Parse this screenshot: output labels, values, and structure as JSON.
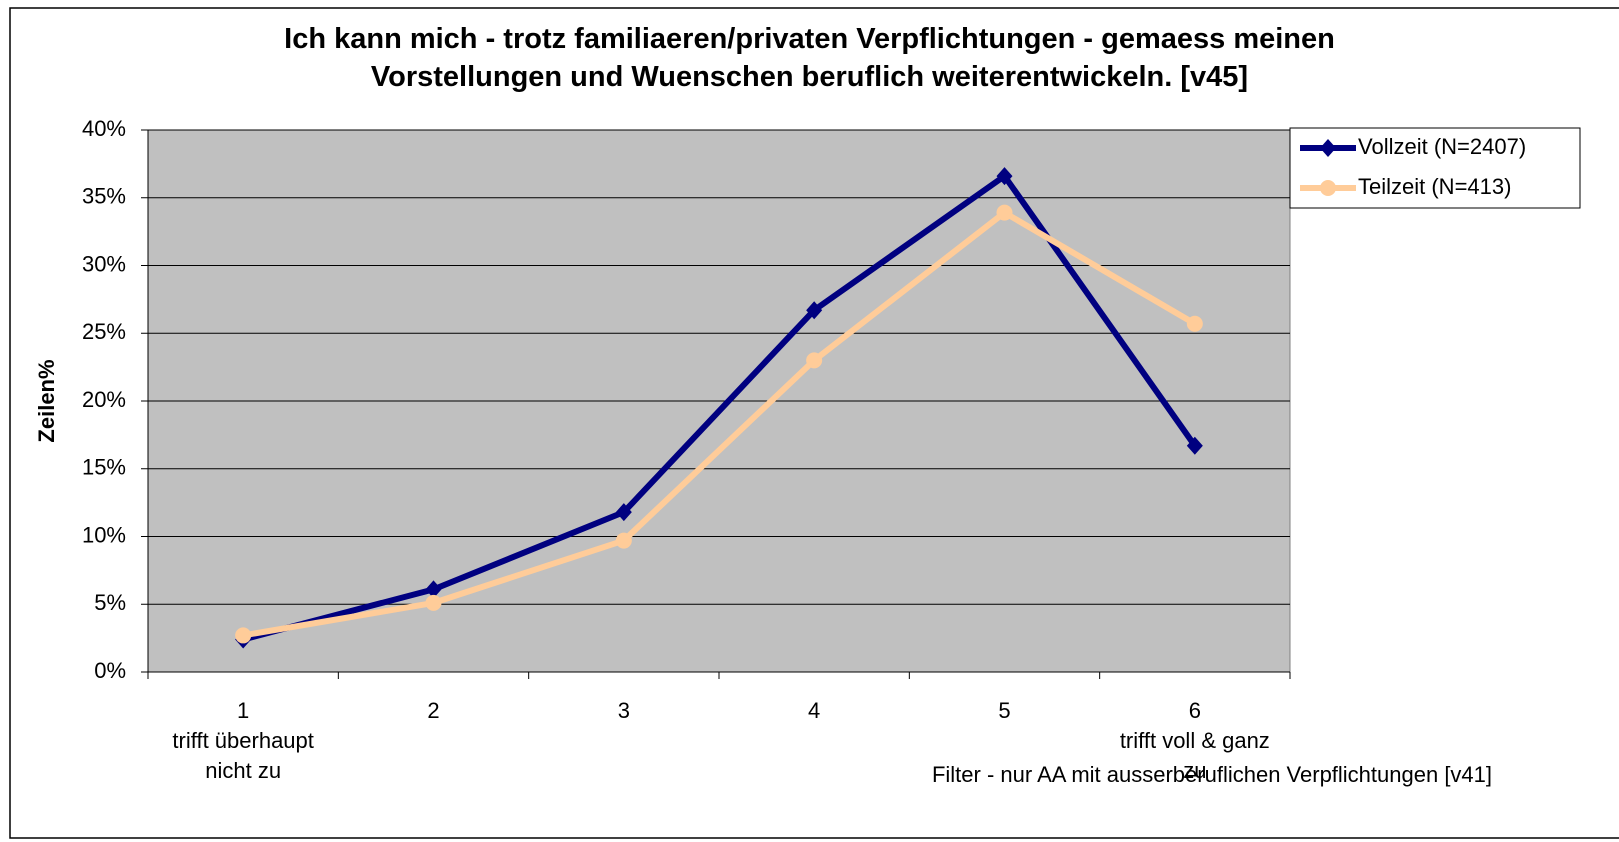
{
  "chart_data": {
    "type": "line",
    "title": "Ich kann mich - trotz familiaeren/privaten Verpflichtungen - gemaess meinen\nVorstellungen und Wuenschen beruflich weiterentwickeln. [v45]",
    "y_label": "Zeilen%",
    "annotation": "Filter - nur AA mit ausserberuflichen Verpflichtungen [v41]",
    "categories": [
      "1\ntrifft überhaupt\nnicht zu",
      "2",
      "3",
      "4",
      "5",
      "6\ntrifft voll & ganz\nzu"
    ],
    "series": [
      {
        "name": "Vollzeit (N=2407)",
        "color": "#000080",
        "marker": "diamond",
        "values": [
          2.4,
          6.1,
          11.8,
          26.7,
          36.6,
          16.7
        ]
      },
      {
        "name": "Teilzeit (N=413)",
        "color": "#ffcc99",
        "marker": "circle",
        "values": [
          2.7,
          5.1,
          9.7,
          23.0,
          33.9,
          25.7
        ]
      }
    ],
    "ylim": [
      0,
      40
    ],
    "yticks": [
      {
        "value": 0,
        "label": "0%"
      },
      {
        "value": 5,
        "label": "5%"
      },
      {
        "value": 10,
        "label": "10%"
      },
      {
        "value": 15,
        "label": "15%"
      },
      {
        "value": 20,
        "label": "20%"
      },
      {
        "value": 25,
        "label": "25%"
      },
      {
        "value": 30,
        "label": "30%"
      },
      {
        "value": 35,
        "label": "35%"
      },
      {
        "value": 40,
        "label": "40%"
      }
    ],
    "grid": true,
    "legend": "right"
  }
}
